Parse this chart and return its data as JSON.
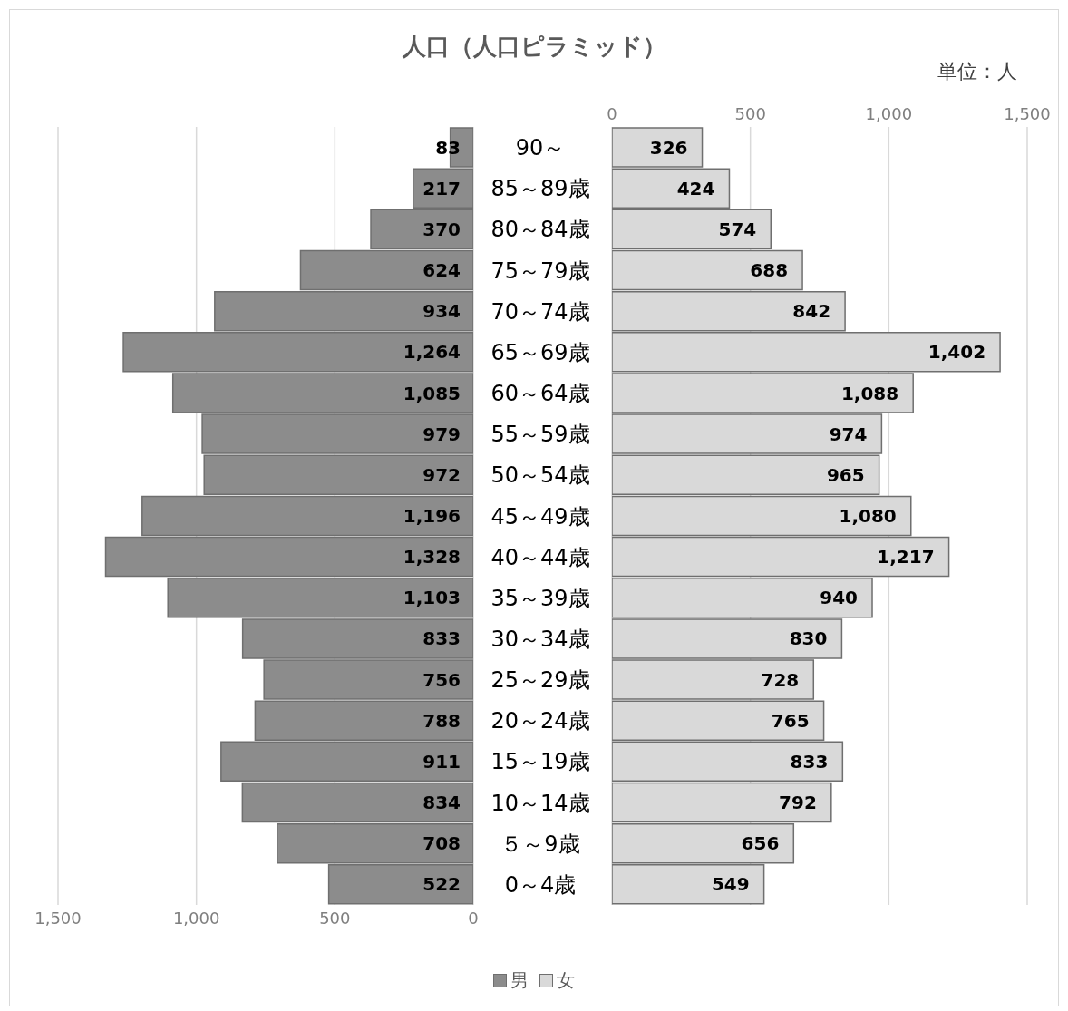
{
  "chart_data": [
    {
      "type": "bar",
      "orientation": "horizontal",
      "title": "人口（人口ピラミッド）",
      "categories": [
        "90～",
        "85～89歳",
        "80～84歳",
        "75～79歳",
        "70～74歳",
        "65～69歳",
        "60～64歳",
        "55～59歳",
        "50～54歳",
        "45～49歳",
        "40～44歳",
        "35～39歳",
        "30～34歳",
        "25～29歳",
        "20～24歳",
        "15～19歳",
        "10～14歳",
        "５～9歳",
        "0～4歳"
      ],
      "series": [
        {
          "name": "男",
          "color": "#8c8c8c",
          "values": [
            83,
            217,
            370,
            624,
            934,
            1264,
            1085,
            979,
            972,
            1196,
            1328,
            1103,
            833,
            756,
            788,
            911,
            834,
            708,
            522
          ],
          "value_labels": [
            "83",
            "217",
            "370",
            "624",
            "934",
            "1,264",
            "1,085",
            "979",
            "972",
            "1,196",
            "1,328",
            "1,103",
            "833",
            "756",
            "788",
            "911",
            "834",
            "708",
            "522"
          ]
        }
      ],
      "xlim": [
        1500,
        0
      ],
      "xticks": [
        {
          "value": 1500,
          "label": "1,500"
        },
        {
          "value": 1000,
          "label": "1,000"
        },
        500,
        0
      ],
      "grid": "x",
      "legend": "bottom"
    },
    {
      "type": "bar",
      "orientation": "horizontal",
      "annotations": [
        "単位：人"
      ],
      "series": [
        {
          "name": "女",
          "color": "#d9d9d9",
          "values": [
            326,
            424,
            574,
            688,
            842,
            1402,
            1088,
            974,
            965,
            1080,
            1217,
            940,
            830,
            728,
            765,
            833,
            792,
            656,
            549
          ],
          "value_labels": [
            "326",
            "424",
            "574",
            "688",
            "842",
            "1,402",
            "1,088",
            "974",
            "965",
            "1,080",
            "1,217",
            "940",
            "830",
            "728",
            "765",
            "833",
            "792",
            "656",
            "549"
          ]
        }
      ],
      "x2lim": [
        0,
        1500
      ],
      "x2ticks": [
        0,
        500,
        {
          "value": 1000,
          "label": "1,000"
        },
        {
          "value": 1500,
          "label": "1,500"
        }
      ],
      "grid": "x",
      "tick_labels": "x",
      "legend": "bottom"
    }
  ]
}
